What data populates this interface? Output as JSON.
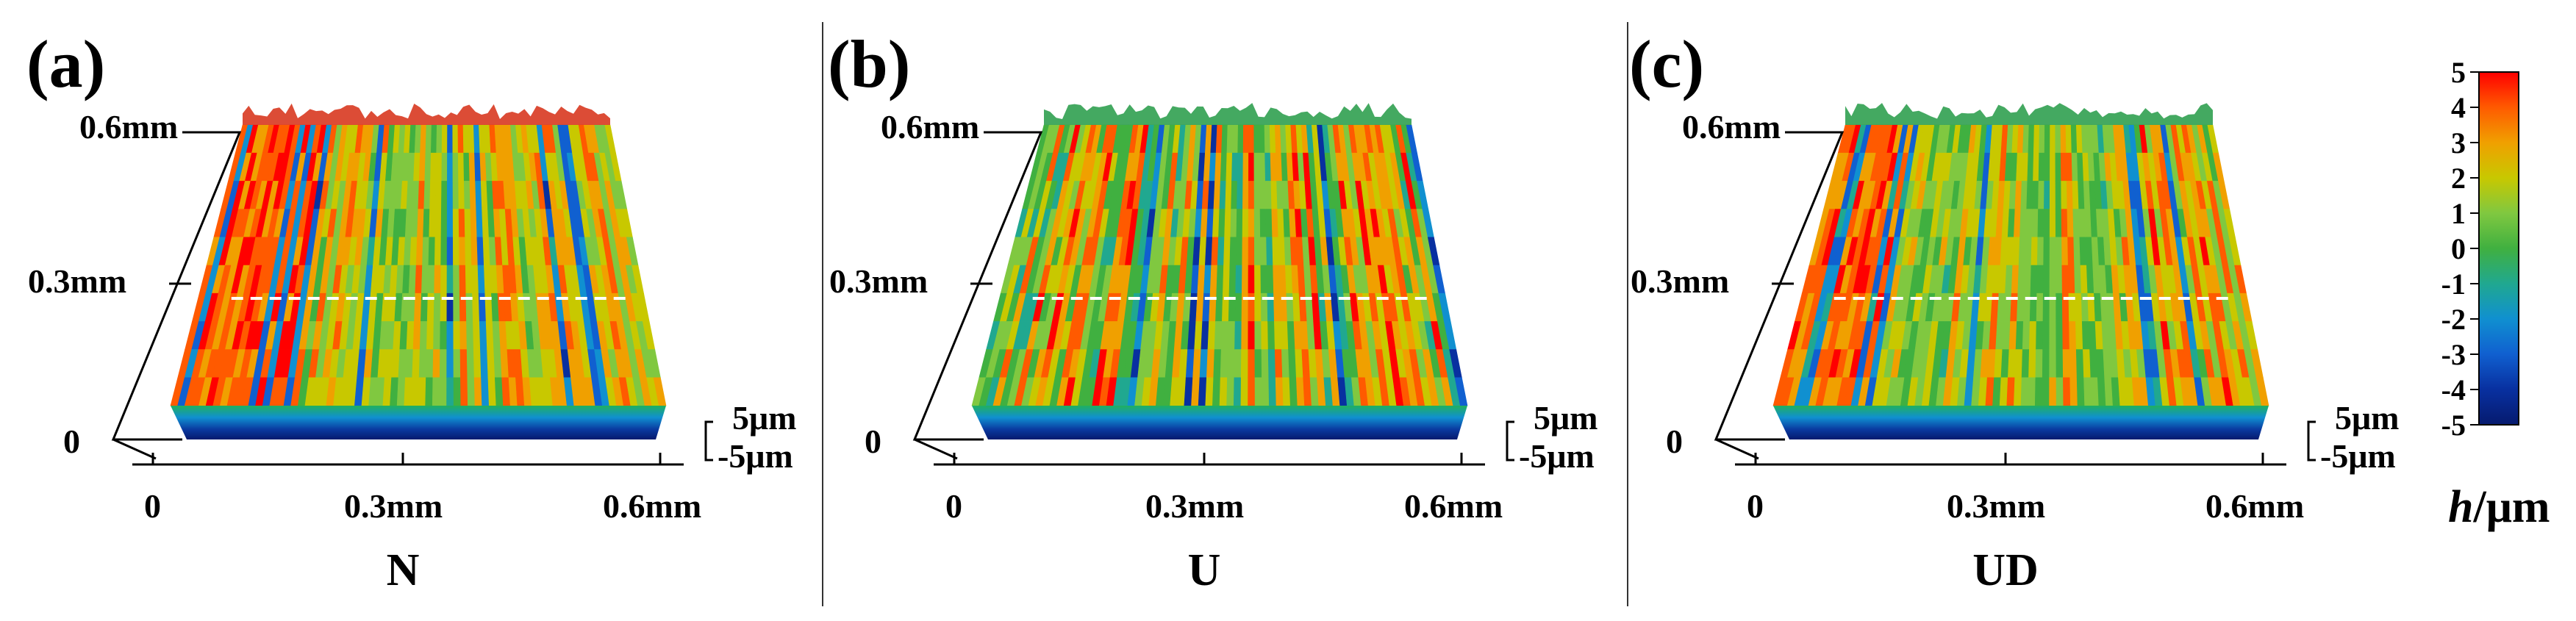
{
  "panels": [
    {
      "label": "(a)",
      "sample": "N",
      "seed": 11,
      "theme": "red"
    },
    {
      "label": "(b)",
      "sample": "U",
      "seed": 23,
      "theme": "green"
    },
    {
      "label": "(c)",
      "sample": "UD",
      "seed": 37,
      "theme": "mixed"
    }
  ],
  "axes": {
    "y_top": "0.6mm",
    "y_mid": "0.3mm",
    "y_zero": "0",
    "x_zero": "0",
    "x_mid": "0.3mm",
    "x_max": "0.6mm",
    "z_top": "5μm",
    "z_bottom": "-5μm"
  },
  "colorbar": {
    "ticks": [
      "5",
      "4",
      "3",
      "2",
      "1",
      "0",
      "-1",
      "-2",
      "-3",
      "-4",
      "-5"
    ],
    "label_italic": "h",
    "label_unit": "/μm",
    "colors": [
      "#ff0000",
      "#ff5a00",
      "#f0a000",
      "#c8c800",
      "#80c840",
      "#40b040",
      "#20a890",
      "#1090d0",
      "#1060d0",
      "#0830a0",
      "#061a6e"
    ]
  },
  "reference_line": "dashed-white"
}
